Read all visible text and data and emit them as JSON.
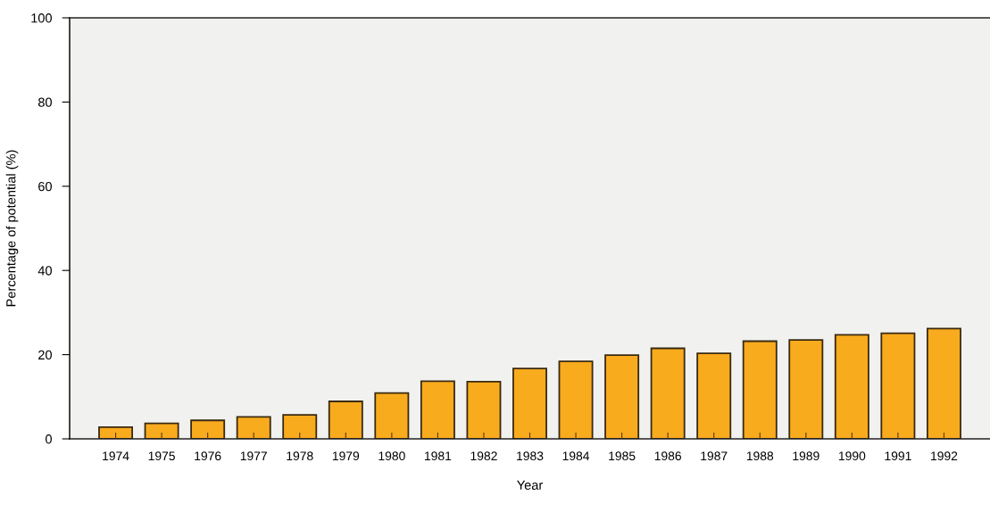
{
  "chart_data": {
    "type": "bar",
    "xlabel": "Year",
    "ylabel": "Percentage of potential (%)",
    "categories": [
      "1974",
      "1975",
      "1976",
      "1977",
      "1978",
      "1979",
      "1980",
      "1981",
      "1982",
      "1983",
      "1984",
      "1985",
      "1986",
      "1987",
      "1988",
      "1989",
      "1990",
      "1991",
      "1992"
    ],
    "values": [
      2.8,
      3.7,
      4.4,
      5.2,
      5.7,
      8.9,
      10.9,
      13.7,
      13.6,
      16.7,
      18.4,
      19.9,
      21.5,
      20.3,
      23.2,
      23.5,
      24.7,
      25.1,
      26.2
    ],
    "color": "#f9ab1e",
    "ylim": [
      0,
      100
    ],
    "yticks": [
      0,
      20,
      40,
      60,
      80,
      100
    ],
    "grid": false
  }
}
